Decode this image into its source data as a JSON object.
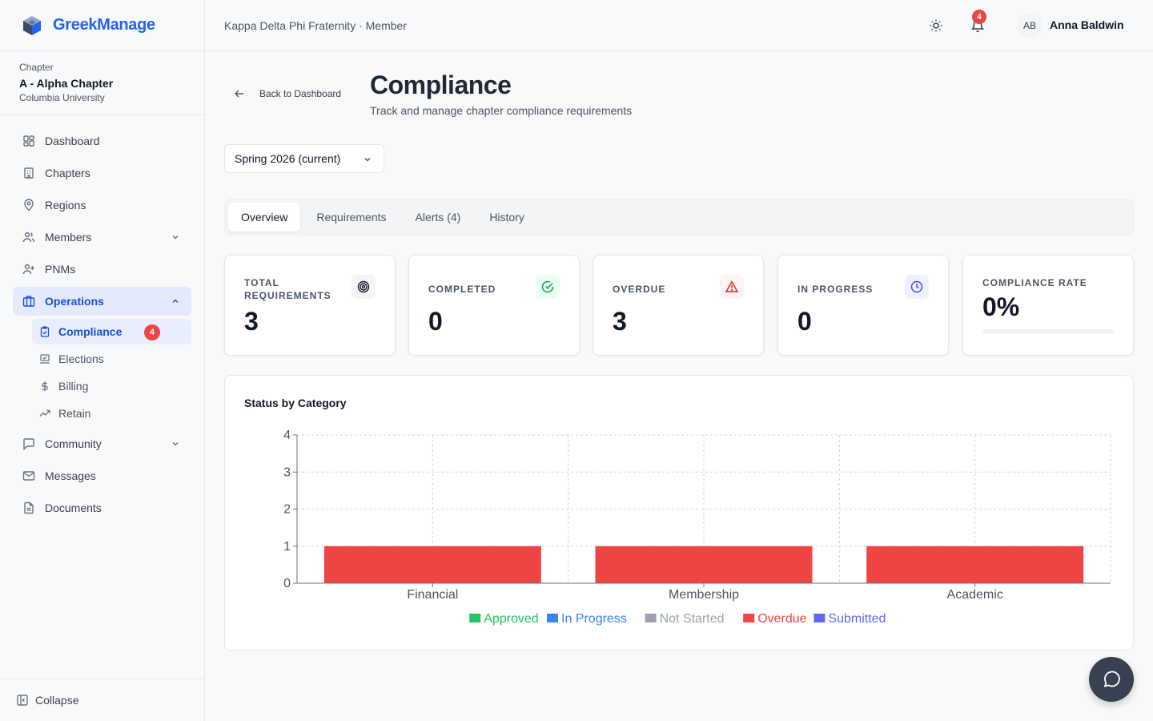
{
  "app": {
    "name": "GreekManage"
  },
  "chapter": {
    "caption": "Chapter",
    "name": "A - Alpha Chapter",
    "university": "Columbia University"
  },
  "nav": {
    "items": [
      {
        "label": "Dashboard",
        "icon": "grid-icon"
      },
      {
        "label": "Chapters",
        "icon": "building-icon"
      },
      {
        "label": "Regions",
        "icon": "map-pin-icon"
      },
      {
        "label": "Members",
        "icon": "users-icon"
      },
      {
        "label": "PNMs",
        "icon": "user-plus-icon"
      },
      {
        "label": "Operations",
        "icon": "briefcase-icon"
      },
      {
        "label": "Community",
        "icon": "message-square-icon"
      },
      {
        "label": "Messages",
        "icon": "mail-icon"
      },
      {
        "label": "Documents",
        "icon": "file-icon"
      }
    ],
    "operations_sub": [
      {
        "label": "Compliance",
        "icon": "clipboard-check-icon",
        "badge": "4"
      },
      {
        "label": "Elections",
        "icon": "vote-icon"
      },
      {
        "label": "Billing",
        "icon": "dollar-icon"
      },
      {
        "label": "Retain",
        "icon": "trending-up-icon"
      }
    ],
    "collapse_label": "Collapse"
  },
  "header": {
    "org": "Kappa Delta Phi Fraternity · Member",
    "notification_count": "4",
    "user_initials": "AB",
    "user_name": "Anna Baldwin"
  },
  "page": {
    "back_label": "Back to Dashboard",
    "title": "Compliance",
    "subtitle": "Track and manage chapter compliance requirements",
    "term_selected": "Spring 2026 (current)",
    "tabs": [
      "Overview",
      "Requirements",
      "Alerts (4)",
      "History"
    ],
    "active_tab": "Overview"
  },
  "stats": [
    {
      "label": "TOTAL REQUIREMENTS",
      "value": "3",
      "icon": "target-icon",
      "color": "#111827",
      "bg": "#f3f4f6"
    },
    {
      "label": "COMPLETED",
      "value": "0",
      "icon": "check-circle-icon",
      "color": "#16a34a",
      "bg": "#ecfdf3"
    },
    {
      "label": "OVERDUE",
      "value": "3",
      "icon": "alert-triangle-icon",
      "color": "#dc2626",
      "bg": "#fef2f2"
    },
    {
      "label": "IN PROGRESS",
      "value": "0",
      "icon": "clock-icon",
      "color": "#4f46e5",
      "bg": "#eef2ff"
    },
    {
      "label": "COMPLIANCE RATE",
      "value": "0%",
      "progress": 0
    }
  ],
  "chart": {
    "title": "Status by Category"
  },
  "chart_data": {
    "type": "bar",
    "title": "Status by Category",
    "categories": [
      "Financial",
      "Membership",
      "Academic"
    ],
    "series": [
      {
        "name": "Approved",
        "color": "#22c55e",
        "values": [
          0,
          0,
          0
        ]
      },
      {
        "name": "In Progress",
        "color": "#3b82f6",
        "values": [
          0,
          0,
          0
        ]
      },
      {
        "name": "Not Started",
        "color": "#9ca3af",
        "values": [
          0,
          0,
          0
        ]
      },
      {
        "name": "Overdue",
        "color": "#ef4444",
        "values": [
          1,
          1,
          1
        ]
      },
      {
        "name": "Submitted",
        "color": "#6366f1",
        "values": [
          0,
          0,
          0
        ]
      }
    ],
    "stacked": true,
    "yticks": [
      0,
      1,
      2,
      3,
      4
    ],
    "ylim": [
      0,
      4
    ],
    "grid": true,
    "legend": "bottom"
  }
}
